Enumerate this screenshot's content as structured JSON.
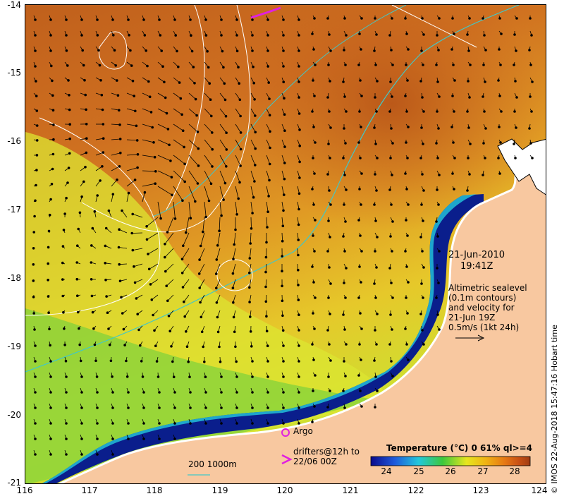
{
  "map": {
    "date": "21-Jun-2010",
    "time": "19:41Z",
    "lon_range": [
      116,
      124
    ],
    "lat_range": [
      -21,
      -14
    ],
    "lon_ticks": [
      "116",
      "117",
      "118",
      "119",
      "120",
      "121",
      "122",
      "123",
      "124"
    ],
    "lat_ticks": [
      "-14",
      "-15",
      "-16",
      "-17",
      "-18",
      "-19",
      "-20",
      "-21"
    ],
    "annotation_lines": [
      "Altimetric sealevel",
      "(0.1m contours)",
      "and velocity for",
      "21-Jun 19Z",
      "0.5m/s (1kt 24h)"
    ],
    "argo_label": "Argo",
    "drifters_label_1": "drifters@12h to",
    "drifters_label_2": "22/06 00Z",
    "bathy_label": "200  1000m",
    "copyright": "© IMOS 22-Aug-2018 15:47:16 Hobart time"
  },
  "legend": {
    "title": "Temperature (°C) 0 61% ql>=4",
    "ticks": [
      "24",
      "25",
      "26",
      "27",
      "28"
    ],
    "colors": [
      "#0a0a8c",
      "#1e5adc",
      "#23c8dc",
      "#3cc83c",
      "#e6e61e",
      "#f0b414",
      "#e67814",
      "#c85014",
      "#a03c14"
    ]
  },
  "colors": {
    "land": "#f8c8a0",
    "warm_sea": "#c8641e",
    "mid_sea": "#e6961e",
    "cool_sea": "#d2e632",
    "coastal_cold": "#0a1e8c",
    "contour": "#ffffff",
    "bathy": "#40c8c8",
    "argo": "#e020e0"
  }
}
